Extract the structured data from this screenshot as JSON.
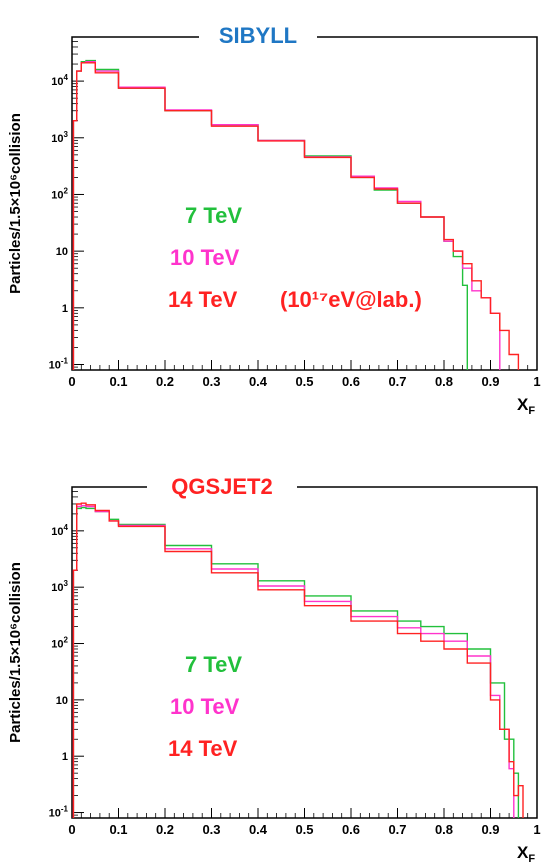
{
  "chart_data": [
    {
      "type": "line",
      "title": "SIBYLL",
      "title_color": "#1f77c4",
      "ylabel": "Particles/1.5×10⁶collision",
      "xlabel": "X",
      "xlabel_sub": "F",
      "xlim": [
        0,
        1
      ],
      "ylim": [
        0.08,
        60000
      ],
      "yscale": "log",
      "x_ticks": [
        "0",
        "0.1",
        "0.2",
        "0.3",
        "0.4",
        "0.5",
        "0.6",
        "0.7",
        "0.8",
        "0.9",
        "1"
      ],
      "legend_position": "bottom-left",
      "annotation": "(10¹⁷eV@lab.)",
      "series": [
        {
          "name": "7 TeV",
          "color": "#22c03c",
          "x": [
            0.003,
            0.01,
            0.02,
            0.03,
            0.05,
            0.1,
            0.2,
            0.3,
            0.4,
            0.5,
            0.6,
            0.65,
            0.7,
            0.75,
            0.8,
            0.82,
            0.84,
            0.85
          ],
          "y": [
            2000,
            15000,
            22000,
            23000,
            16000,
            7500,
            3000,
            1700,
            900,
            480,
            200,
            120,
            70,
            40,
            15,
            8,
            2.5,
            0.08
          ]
        },
        {
          "name": "10 TeV",
          "color": "#ff33cc",
          "x": [
            0.003,
            0.01,
            0.02,
            0.03,
            0.05,
            0.1,
            0.2,
            0.3,
            0.4,
            0.5,
            0.6,
            0.65,
            0.7,
            0.75,
            0.8,
            0.82,
            0.84,
            0.86,
            0.88,
            0.9,
            0.92
          ],
          "y": [
            2000,
            15000,
            21000,
            22000,
            15000,
            7800,
            3100,
            1700,
            900,
            460,
            210,
            130,
            75,
            40,
            15,
            10,
            5,
            2,
            1.5,
            0.8,
            0.08
          ]
        },
        {
          "name": "14 TeV",
          "color": "#ff2222",
          "x": [
            0.003,
            0.01,
            0.02,
            0.03,
            0.05,
            0.1,
            0.2,
            0.3,
            0.4,
            0.5,
            0.6,
            0.65,
            0.7,
            0.75,
            0.8,
            0.82,
            0.84,
            0.86,
            0.88,
            0.9,
            0.92,
            0.94,
            0.96
          ],
          "y": [
            2000,
            15000,
            21000,
            21000,
            14000,
            7500,
            3000,
            1600,
            880,
            450,
            200,
            125,
            70,
            40,
            16,
            10,
            6,
            3,
            1.5,
            0.8,
            0.4,
            0.15,
            0.08
          ]
        }
      ]
    },
    {
      "type": "line",
      "title": "QGSJET2",
      "title_color": "#ff2222",
      "ylabel": "Particles/1.5×10⁶collision",
      "xlabel": "X",
      "xlabel_sub": "F",
      "xlim": [
        0,
        1
      ],
      "ylim": [
        0.08,
        60000
      ],
      "yscale": "log",
      "x_ticks": [
        "0",
        "0.1",
        "0.2",
        "0.3",
        "0.4",
        "0.5",
        "0.6",
        "0.7",
        "0.8",
        "0.9",
        "1"
      ],
      "legend_position": "bottom-left",
      "annotation": "",
      "series": [
        {
          "name": "7 TeV",
          "color": "#22c03c",
          "x": [
            0.003,
            0.01,
            0.02,
            0.03,
            0.05,
            0.08,
            0.1,
            0.2,
            0.3,
            0.4,
            0.5,
            0.6,
            0.7,
            0.75,
            0.8,
            0.85,
            0.9,
            0.93,
            0.95,
            0.96
          ],
          "y": [
            2000,
            25000,
            26000,
            25000,
            22000,
            16000,
            13000,
            5500,
            2600,
            1300,
            700,
            380,
            250,
            200,
            150,
            80,
            20,
            2,
            0.5,
            0.08
          ]
        },
        {
          "name": "10 TeV",
          "color": "#ff33cc",
          "x": [
            0.003,
            0.01,
            0.02,
            0.03,
            0.05,
            0.08,
            0.1,
            0.2,
            0.3,
            0.4,
            0.5,
            0.6,
            0.7,
            0.75,
            0.8,
            0.85,
            0.9,
            0.92,
            0.94,
            0.95
          ],
          "y": [
            2000,
            27000,
            28000,
            27000,
            22000,
            15000,
            12500,
            4800,
            2100,
            1050,
            560,
            300,
            190,
            150,
            110,
            60,
            12,
            3,
            0.6,
            0.08
          ]
        },
        {
          "name": "14 TeV",
          "color": "#ff2222",
          "x": [
            0.003,
            0.01,
            0.02,
            0.03,
            0.05,
            0.08,
            0.1,
            0.2,
            0.3,
            0.4,
            0.5,
            0.6,
            0.7,
            0.75,
            0.8,
            0.85,
            0.9,
            0.92,
            0.94,
            0.95,
            0.96,
            0.97
          ],
          "y": [
            2000,
            30000,
            31000,
            29000,
            23000,
            15000,
            12000,
            4300,
            1800,
            900,
            470,
            250,
            150,
            110,
            80,
            45,
            10,
            3,
            0.8,
            0.2,
            0.3,
            0.08
          ]
        }
      ]
    }
  ]
}
